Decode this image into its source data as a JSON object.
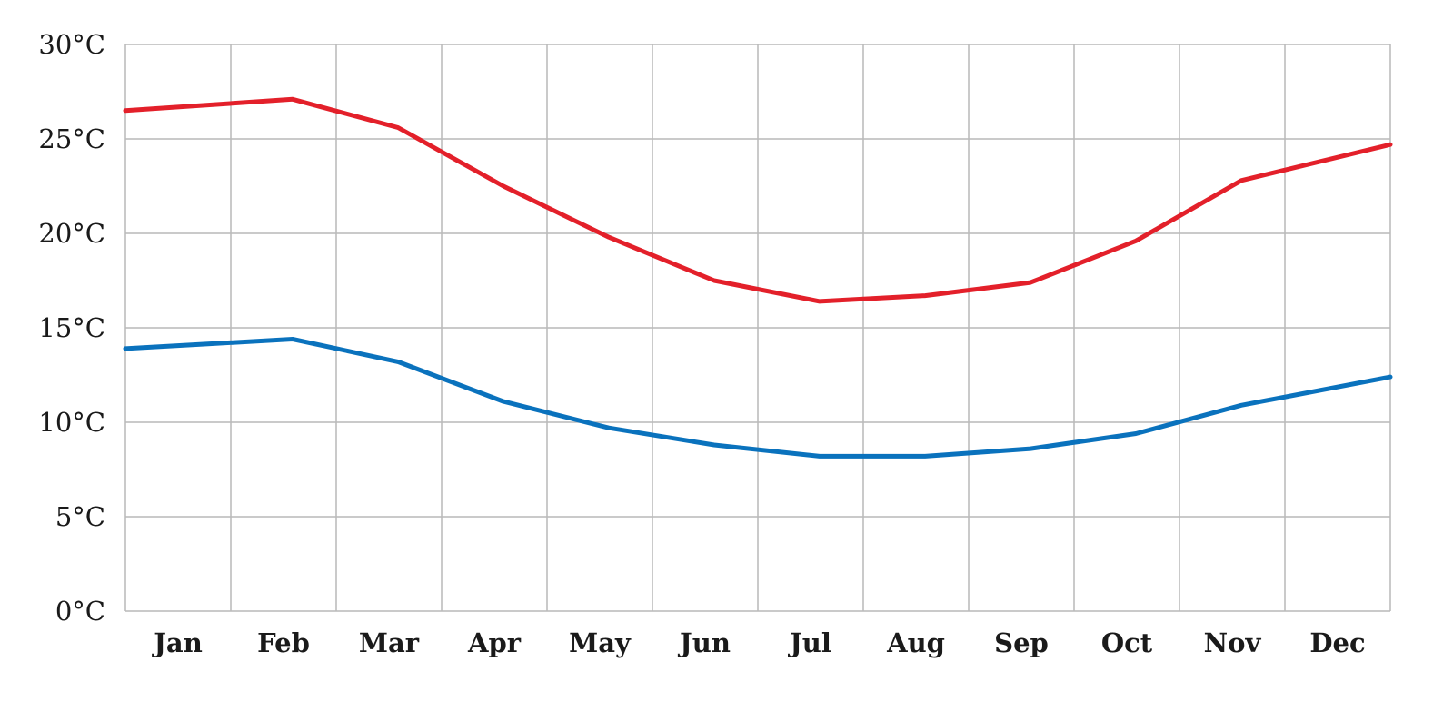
{
  "chart_data": {
    "type": "line",
    "title": "",
    "xlabel": "",
    "ylabel": "",
    "categories": [
      "Jan",
      "Feb",
      "Mar",
      "Apr",
      "May",
      "Jun",
      "Jul",
      "Aug",
      "Sep",
      "Oct",
      "Nov",
      "Dec"
    ],
    "y_ticks": [
      {
        "value": 0,
        "label": "0°C"
      },
      {
        "value": 5,
        "label": "5°C"
      },
      {
        "value": 10,
        "label": "10°C"
      },
      {
        "value": 15,
        "label": "15°C"
      },
      {
        "value": 20,
        "label": "20°C"
      },
      {
        "value": 25,
        "label": "25°C"
      },
      {
        "value": 30,
        "label": "30°C"
      }
    ],
    "ylim": [
      0,
      30
    ],
    "grid": true,
    "legend": "none",
    "series": [
      {
        "color": "#e3202a",
        "values": [
          26.5,
          27.1,
          25.6,
          22.5,
          19.8,
          17.5,
          16.4,
          16.7,
          17.4,
          19.6,
          22.8,
          24.7
        ]
      },
      {
        "color": "#0a72bd",
        "values": [
          13.9,
          14.4,
          13.2,
          11.1,
          9.7,
          8.8,
          8.2,
          8.2,
          8.6,
          9.4,
          10.9,
          12.4
        ]
      }
    ]
  }
}
